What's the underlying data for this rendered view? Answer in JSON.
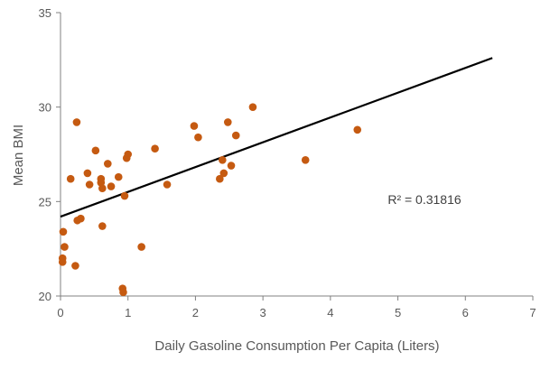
{
  "chart_data": {
    "type": "scatter",
    "title": "",
    "xlabel": "Daily Gasoline Consumption Per Capita (Liters)",
    "ylabel": "Mean BMI",
    "xlim": [
      0,
      7
    ],
    "ylim": [
      20,
      35
    ],
    "x_ticks": [
      "0",
      "1",
      "2",
      "3",
      "4",
      "5",
      "6",
      "7"
    ],
    "y_ticks": [
      "20",
      "25",
      "30",
      "35"
    ],
    "grid": false,
    "legend": "none",
    "point_color": "#c55a11",
    "trendline_color": "#000000",
    "points": [
      {
        "x": 0.03,
        "y": 22.0
      },
      {
        "x": 0.03,
        "y": 21.8
      },
      {
        "x": 0.04,
        "y": 23.4
      },
      {
        "x": 0.06,
        "y": 22.6
      },
      {
        "x": 0.15,
        "y": 26.2
      },
      {
        "x": 0.22,
        "y": 21.6
      },
      {
        "x": 0.24,
        "y": 29.2
      },
      {
        "x": 0.25,
        "y": 24.0
      },
      {
        "x": 0.3,
        "y": 24.1
      },
      {
        "x": 0.4,
        "y": 26.5
      },
      {
        "x": 0.43,
        "y": 25.9
      },
      {
        "x": 0.52,
        "y": 27.7
      },
      {
        "x": 0.6,
        "y": 26.2
      },
      {
        "x": 0.6,
        "y": 26.0
      },
      {
        "x": 0.62,
        "y": 25.7
      },
      {
        "x": 0.62,
        "y": 23.7
      },
      {
        "x": 0.7,
        "y": 27.0
      },
      {
        "x": 0.75,
        "y": 25.8
      },
      {
        "x": 0.86,
        "y": 26.3
      },
      {
        "x": 0.92,
        "y": 20.4
      },
      {
        "x": 0.93,
        "y": 20.2
      },
      {
        "x": 0.95,
        "y": 25.3
      },
      {
        "x": 0.98,
        "y": 27.3
      },
      {
        "x": 1.0,
        "y": 27.5
      },
      {
        "x": 1.2,
        "y": 22.6
      },
      {
        "x": 1.4,
        "y": 27.8
      },
      {
        "x": 1.58,
        "y": 25.9
      },
      {
        "x": 1.98,
        "y": 29.0
      },
      {
        "x": 2.04,
        "y": 28.4
      },
      {
        "x": 2.36,
        "y": 26.2
      },
      {
        "x": 2.4,
        "y": 27.2
      },
      {
        "x": 2.42,
        "y": 26.5
      },
      {
        "x": 2.48,
        "y": 29.2
      },
      {
        "x": 2.53,
        "y": 26.9
      },
      {
        "x": 2.6,
        "y": 28.5
      },
      {
        "x": 2.85,
        "y": 30.0
      },
      {
        "x": 3.63,
        "y": 27.2
      },
      {
        "x": 4.4,
        "y": 28.8
      }
    ],
    "trendline": {
      "x": [
        0,
        6.4
      ],
      "y": [
        24.2,
        32.6
      ]
    },
    "annotation": "R² = 0.31816"
  }
}
